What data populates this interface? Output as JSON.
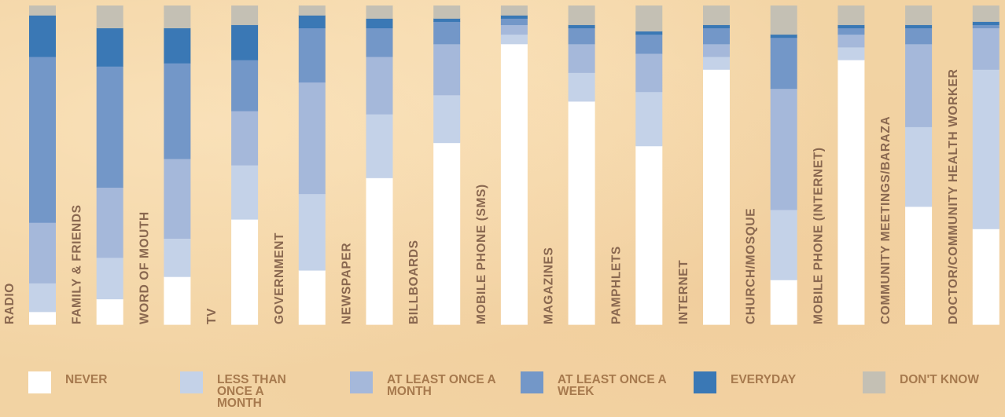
{
  "chart_data": {
    "type": "bar",
    "stacked": true,
    "orientation": "vertical",
    "normalized_to": 100,
    "categories": [
      "RADIO",
      "FAMILY & FRIENDS",
      "WORD OF MOUTH",
      "TV",
      "GOVERNMENT",
      "NEWSPAPER",
      "BILLBOARDS",
      "MOBILE PHONE (SMS)",
      "MAGAZINES",
      "PAMPHLETS",
      "INTERNET",
      "CHURCH/MOSQUE",
      "MOBILE PHONE (INTERNET)",
      "COMMUNITY MEETINGS/BARAZA",
      "DOCTOR/COMMUNITY HEALTH WORKER"
    ],
    "series": [
      {
        "name": "NEVER",
        "color": "#ffffff",
        "values": [
          4,
          8,
          15,
          33,
          17,
          46,
          57,
          88,
          70,
          56,
          80,
          14,
          83,
          37,
          30
        ]
      },
      {
        "name": "LESS THAN ONCE A MONTH",
        "color": "#c4d2e8",
        "values": [
          9,
          13,
          12,
          17,
          24,
          20,
          15,
          3,
          9,
          17,
          4,
          22,
          4,
          25,
          50
        ]
      },
      {
        "name": "AT LEAST ONCE A MONTH",
        "color": "#a5b8da",
        "values": [
          19,
          22,
          25,
          17,
          35,
          18,
          16,
          3,
          9,
          12,
          4,
          38,
          4,
          26,
          13
        ]
      },
      {
        "name": "AT LEAST ONCE A WEEK",
        "color": "#7397c8",
        "values": [
          52,
          38,
          30,
          16,
          17,
          9,
          7,
          2,
          5,
          6,
          5,
          16,
          2,
          5,
          1
        ]
      },
      {
        "name": "EVERYDAY",
        "color": "#3a78b5",
        "values": [
          13,
          12,
          11,
          11,
          4,
          3,
          1,
          1,
          1,
          1,
          1,
          1,
          1,
          1,
          1
        ]
      },
      {
        "name": "DON'T KNOW",
        "color": "#c4c0b4",
        "values": [
          3,
          7,
          7,
          6,
          3,
          4,
          4,
          3,
          6,
          8,
          6,
          9,
          6,
          6,
          5
        ]
      }
    ],
    "ylim": [
      0,
      100
    ],
    "legend": "bottom"
  },
  "legend": [
    {
      "label": "NEVER",
      "color": "#ffffff"
    },
    {
      "label": "LESS THAN ONCE A MONTH",
      "color": "#c4d2e8"
    },
    {
      "label": "AT LEAST ONCE A MONTH",
      "color": "#a5b8da"
    },
    {
      "label": "AT LEAST ONCE A WEEK",
      "color": "#7397c8"
    },
    {
      "label": "EVERYDAY",
      "color": "#3a78b5"
    },
    {
      "label": "DON'T KNOW",
      "color": "#c4c0b4"
    }
  ]
}
